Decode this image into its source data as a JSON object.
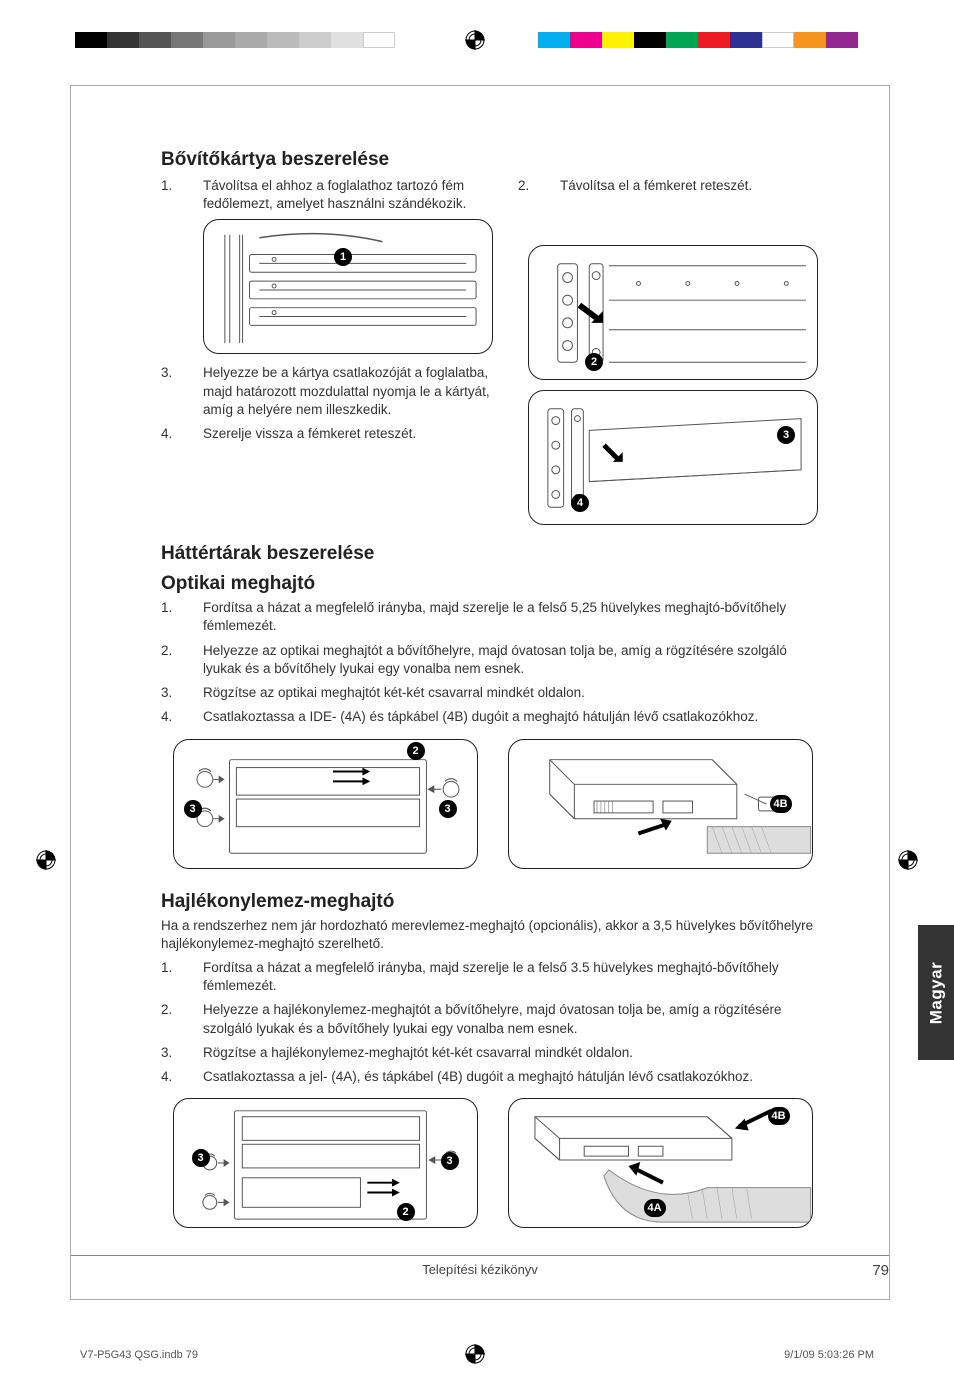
{
  "colorbars": {
    "grayscale": [
      "#000000",
      "#333333",
      "#555555",
      "#777777",
      "#999999",
      "#aaaaaa",
      "#bbbbbb",
      "#cccccc",
      "#e0e0e0",
      "#ffffff"
    ],
    "color": [
      "#00aeef",
      "#ec008c",
      "#fff200",
      "#000000",
      "#00a651",
      "#ed1c24",
      "#2e3192",
      "#ffffff",
      "#f7941d",
      "#92278f"
    ]
  },
  "section1": {
    "title": "Bővítőkártya beszerelése",
    "left": [
      {
        "n": "1.",
        "t": "Távolítsa el ahhoz a foglalathoz tartozó fém fedőlemezt, amelyet használni szándékozik."
      },
      {
        "n": "3.",
        "t": "Helyezze be a kártya csatlakozóját a foglalatba, majd határozott mozdulattal nyomja le a kártyát, amíg a helyére nem illeszkedik."
      },
      {
        "n": "4.",
        "t": "Szerelje vissza a fémkeret reteszét."
      }
    ],
    "right": [
      {
        "n": "2.",
        "t": "Távolítsa el a fémkeret reteszét."
      }
    ]
  },
  "section2": {
    "title1": "Háttértárak beszerelése",
    "title2": "Optikai meghajtó",
    "items": [
      {
        "n": "1.",
        "t": "Fordítsa a házat a megfelelő irányba, majd szerelje le a felső 5,25 hüvelykes meghajtó-bővítőhely fémlemezét."
      },
      {
        "n": "2.",
        "t": "Helyezze az optikai meghajtót a bővítőhelyre, majd óvatosan tolja be, amíg a rögzítésére szolgáló lyukak és a bővítőhely lyukai egy vonalba nem esnek."
      },
      {
        "n": "3.",
        "t": "Rögzítse az optikai meghajtót két-két csavarral mindkét oldalon."
      },
      {
        "n": "4.",
        "t": "Csatlakoztassa a IDE- (4A) és tápkábel (4B) dugóit a meghajtó hátulján lévő csatlakozókhoz."
      }
    ]
  },
  "section3": {
    "title": "Hajlékonylemez-meghajtó",
    "intro": "Ha a rendszerhez nem jár hordozható merevlemez-meghajtó (opcionális), akkor a 3,5 hüvelykes bővítőhelyre hajlékonylemez-meghajtó szerelhető.",
    "items": [
      {
        "n": "1.",
        "t": "Fordítsa a házat a megfelelő irányba, majd szerelje le a felső 3.5 hüvelykes meghajtó-bővítőhely fémlemezét."
      },
      {
        "n": "2.",
        "t": "Helyezze a hajlékonylemez-meghajtót a bővítőhelyre, majd óvatosan tolja be, amíg a rögzítésére szolgáló lyukak és a bővítőhely lyukai egy vonalba nem esnek."
      },
      {
        "n": "3.",
        "t": "Rögzítse a hajlékonylemez-meghajtót két-két csavarral mindkét oldalon."
      },
      {
        "n": "4.",
        "t": "Csatlakoztassa a jel- (4A), és tápkábel (4B) dugóit a meghajtó hátulján lévő csatlakozókhoz."
      }
    ]
  },
  "sidetab": "Magyar",
  "footer": {
    "center": "Telepítési kézikönyv",
    "page": "79"
  },
  "slug": {
    "left": "V7-P5G43 QSG.indb   79",
    "right": "9/1/09   5:03:26 PM"
  },
  "badges": {
    "b1": "1",
    "b2": "2",
    "b3": "3",
    "b4": "4",
    "b4a": "4A",
    "b4b": "4B"
  }
}
